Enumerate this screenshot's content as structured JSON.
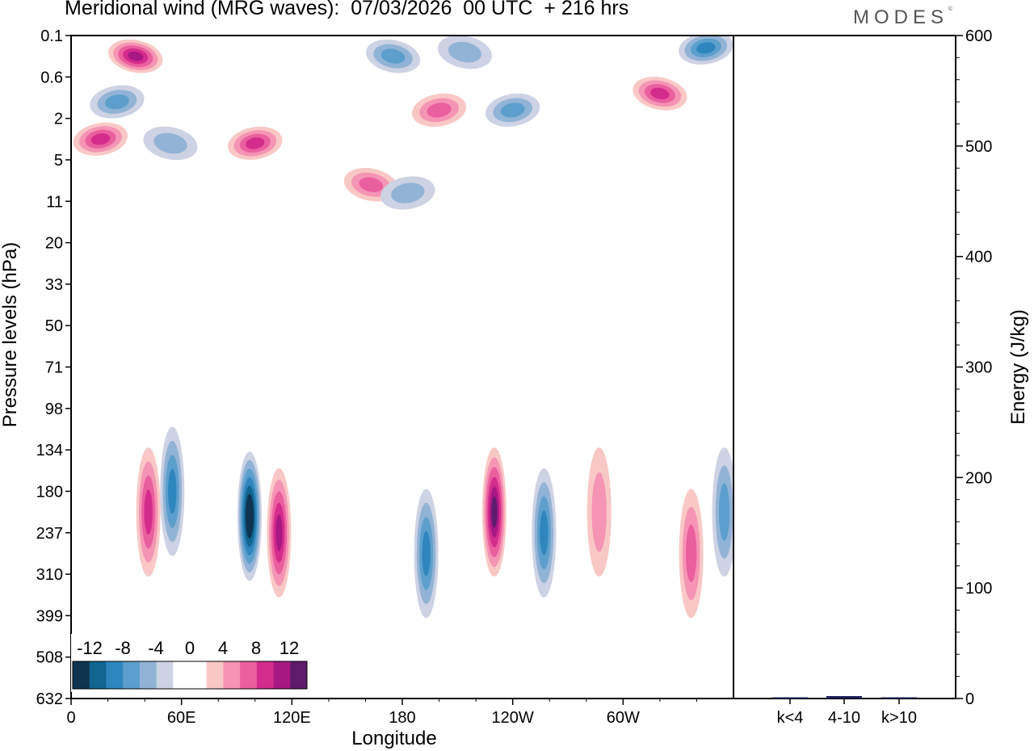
{
  "header": {
    "title": "Meridional wind (MRG waves):  07/03/2026  00 UTC  + 216 hrs",
    "brand": "MODES",
    "brand_mark": "©"
  },
  "chart_data": [
    {
      "type": "heatmap",
      "title": "Meridional wind (MRG waves)",
      "xlabel": "Longitude",
      "ylabel": "Pressure levels (hPa)",
      "x_ticks": [
        "0",
        "60E",
        "120E",
        "180",
        "120W",
        "60W"
      ],
      "x_tick_degrees": [
        0,
        60,
        120,
        180,
        240,
        300
      ],
      "xlim": [
        0,
        360
      ],
      "y_ticks": [
        "0.1",
        "0.6",
        "2",
        "5",
        "11",
        "20",
        "33",
        "50",
        "71",
        "98",
        "134",
        "180",
        "237",
        "310",
        "399",
        "508",
        "632"
      ],
      "colorbar": {
        "labels": [
          "-12",
          "-8",
          "-4",
          "0",
          "4",
          "8",
          "12"
        ],
        "label_values": [
          -12,
          -8,
          -4,
          0,
          4,
          8,
          12
        ],
        "levels": [
          -14,
          -12,
          -10,
          -8,
          -6,
          -4,
          -2,
          0,
          2,
          4,
          6,
          8,
          10,
          12,
          14
        ],
        "colors": [
          "#0e3450",
          "#126591",
          "#2f86be",
          "#5d9fcc",
          "#91b3d6",
          "#cdd2e4",
          "#ffffff",
          "#ffffff",
          "#f9c8c6",
          "#f594b5",
          "#ea5f9e",
          "#d42c8c",
          "#a81885",
          "#5e1a6c"
        ]
      },
      "features": [
        {
          "lon": 16,
          "level_index": 2.5,
          "value": 9
        },
        {
          "lon": 35,
          "level_index": 0.5,
          "value": 11
        },
        {
          "lon": 25,
          "level_index": 1.6,
          "value": -6
        },
        {
          "lon": 54,
          "level_index": 2.6,
          "value": -4
        },
        {
          "lon": 100,
          "level_index": 2.6,
          "value": 9
        },
        {
          "lon": 175,
          "level_index": 0.5,
          "value": -7
        },
        {
          "lon": 200,
          "level_index": 1.8,
          "value": 7
        },
        {
          "lon": 214,
          "level_index": 0.4,
          "value": -5
        },
        {
          "lon": 240,
          "level_index": 1.8,
          "value": -6
        },
        {
          "lon": 320,
          "level_index": 1.4,
          "value": 8
        },
        {
          "lon": 345,
          "level_index": 0.3,
          "value": -9
        },
        {
          "lon": 163,
          "level_index": 3.6,
          "value": 6
        },
        {
          "lon": 183,
          "level_index": 3.8,
          "value": -5
        },
        {
          "lon": 55,
          "level_index": 11,
          "value": -8
        },
        {
          "lon": 42,
          "level_index": 11.5,
          "value": 8
        },
        {
          "lon": 97,
          "level_index": 11.6,
          "value": -14
        },
        {
          "lon": 113,
          "level_index": 12,
          "value": 10
        },
        {
          "lon": 193,
          "level_index": 12.5,
          "value": -9
        },
        {
          "lon": 230,
          "level_index": 11.5,
          "value": 12
        },
        {
          "lon": 257,
          "level_index": 12,
          "value": -8
        },
        {
          "lon": 287,
          "level_index": 11.5,
          "value": 5
        },
        {
          "lon": 337,
          "level_index": 12.5,
          "value": 6
        },
        {
          "lon": 355,
          "level_index": 11.5,
          "value": -6
        }
      ]
    },
    {
      "type": "bar",
      "categories": [
        "k<4",
        "4-10",
        "k>10"
      ],
      "values": [
        0.6,
        2.2,
        0.3
      ],
      "ylabel": "Energy (J/kg)",
      "ylim": [
        0,
        600
      ],
      "y_ticks": [
        "0",
        "100",
        "200",
        "300",
        "400",
        "500",
        "600"
      ],
      "y_tick_values": [
        0,
        100,
        200,
        300,
        400,
        500,
        600
      ]
    }
  ],
  "colors": {
    "bar_fill": "#1b1f5a",
    "axis": "#000000"
  }
}
